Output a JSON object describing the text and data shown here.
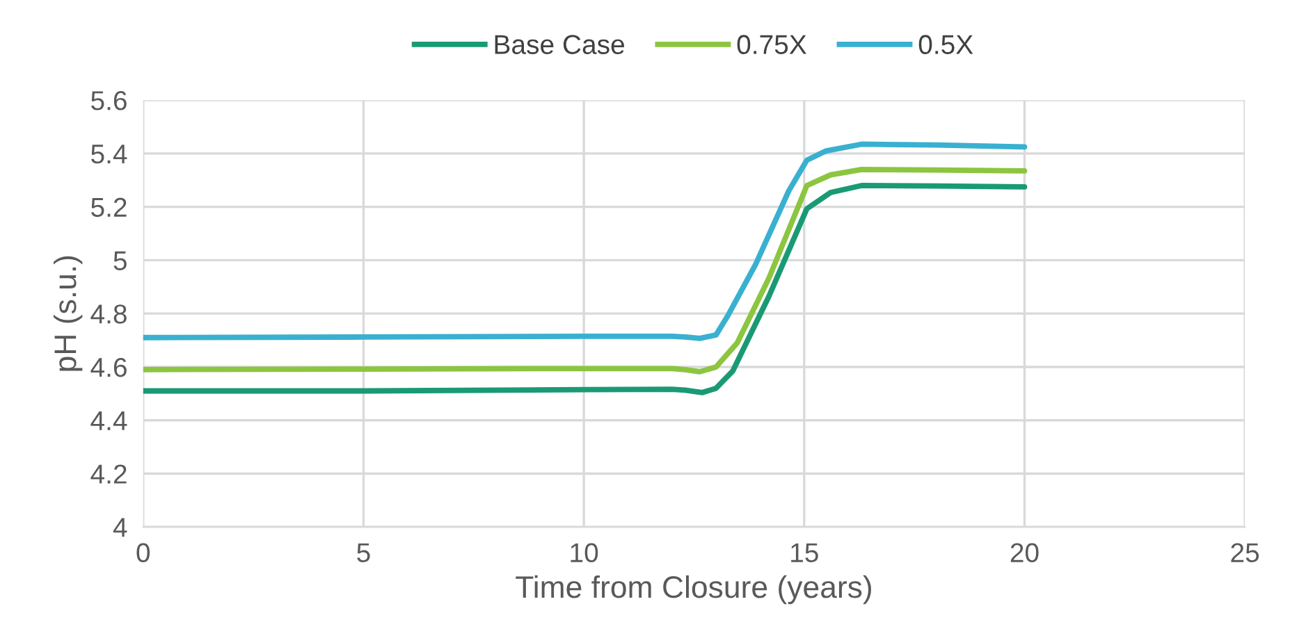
{
  "chart_data": {
    "type": "line",
    "xlabel": "Time from Closure (years)",
    "ylabel": "pH (s.u.)",
    "xlim": [
      0,
      25
    ],
    "xticks": [
      0,
      5,
      10,
      15,
      20,
      25
    ],
    "ylim": [
      4,
      5.6
    ],
    "yticks": [
      4,
      {
        "value": 4.2,
        "label": "4.2"
      },
      {
        "value": 4.4,
        "label": "4.4"
      },
      {
        "value": 4.6,
        "label": "4.6"
      },
      {
        "value": 4.8,
        "label": "4.8"
      },
      5,
      {
        "value": 5.2,
        "label": "5.2"
      },
      {
        "value": 5.4,
        "label": "5.4"
      },
      {
        "value": 5.6,
        "label": "5.6"
      }
    ],
    "grid": true,
    "legend": "top",
    "marker": "none",
    "line_style": "solid",
    "series": [
      {
        "name": "Base Case",
        "color": "#1a9a74",
        "x": [
          0,
          5,
          10,
          12.0,
          12.3,
          12.69,
          13.0,
          13.38,
          14.2,
          15.06,
          15.6,
          16.3,
          18,
          20
        ],
        "values": [
          4.51,
          4.51,
          4.515,
          4.516,
          4.513,
          4.504,
          4.52,
          4.585,
          4.865,
          5.193,
          5.254,
          5.28,
          5.278,
          5.275
        ]
      },
      {
        "name": "0.75X",
        "color": "#8cc540",
        "x": [
          0,
          5,
          10,
          12.0,
          12.3,
          12.63,
          13.0,
          13.48,
          14.2,
          15.06,
          15.6,
          16.3,
          18,
          20
        ],
        "values": [
          4.59,
          4.592,
          4.594,
          4.594,
          4.59,
          4.582,
          4.6,
          4.69,
          4.933,
          5.28,
          5.32,
          5.34,
          5.338,
          5.335
        ]
      },
      {
        "name": "0.5X",
        "color": "#3ab0d0",
        "x": [
          0,
          5,
          10,
          12.0,
          12.3,
          12.63,
          13.0,
          13.26,
          13.9,
          14.65,
          15.06,
          15.5,
          16.3,
          18,
          20
        ],
        "values": [
          4.71,
          4.712,
          4.715,
          4.715,
          4.712,
          4.707,
          4.72,
          4.79,
          4.985,
          5.26,
          5.375,
          5.41,
          5.435,
          5.432,
          5.425
        ]
      }
    ]
  }
}
